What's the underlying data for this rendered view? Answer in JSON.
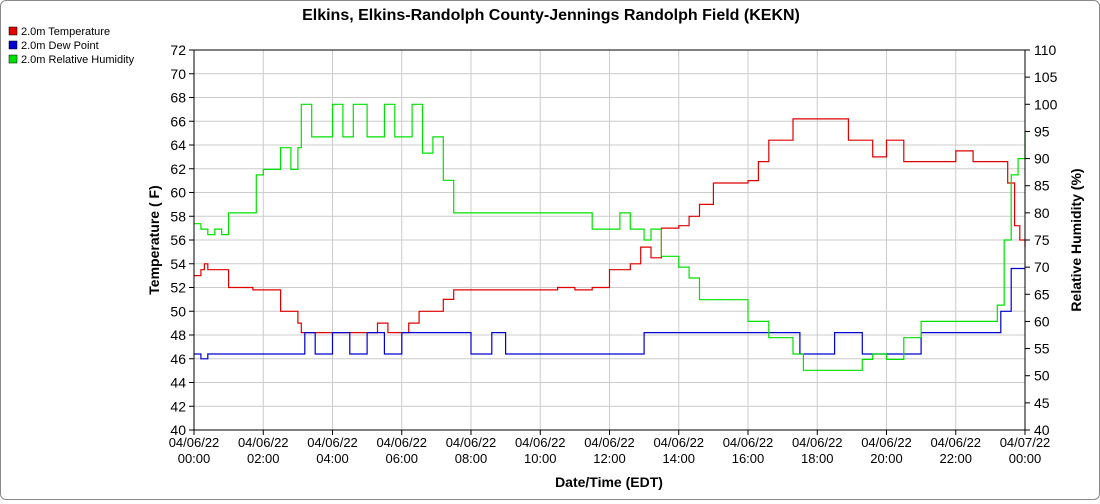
{
  "chart_data": {
    "type": "line",
    "title": "Elkins, Elkins-Randolph County-Jennings Randolph Field (KEKN)",
    "xlabel": "Date/Time (EDT)",
    "ylabel": "Temperature ( F)",
    "y2label": "Relative Humidity (%)",
    "ylim": [
      40,
      72
    ],
    "y2lim": [
      40,
      110
    ],
    "xlim_hours": [
      0,
      24
    ],
    "grid": true,
    "legend_placement": "top-left",
    "x_ticks": [
      {
        "date": "04/06/22",
        "time": "00:00"
      },
      {
        "date": "04/06/22",
        "time": "02:00"
      },
      {
        "date": "04/06/22",
        "time": "04:00"
      },
      {
        "date": "04/06/22",
        "time": "06:00"
      },
      {
        "date": "04/06/22",
        "time": "08:00"
      },
      {
        "date": "04/06/22",
        "time": "10:00"
      },
      {
        "date": "04/06/22",
        "time": "12:00"
      },
      {
        "date": "04/06/22",
        "time": "14:00"
      },
      {
        "date": "04/06/22",
        "time": "16:00"
      },
      {
        "date": "04/06/22",
        "time": "18:00"
      },
      {
        "date": "04/06/22",
        "time": "20:00"
      },
      {
        "date": "04/06/22",
        "time": "22:00"
      },
      {
        "date": "04/07/22",
        "time": "00:00"
      }
    ],
    "y_ticks": [
      "40",
      "42",
      "44",
      "46",
      "48",
      "50",
      "52",
      "54",
      "56",
      "58",
      "60",
      "62",
      "64",
      "66",
      "68",
      "70",
      "72"
    ],
    "y2_ticks": [
      "40",
      "45",
      "50",
      "55",
      "60",
      "65",
      "70",
      "75",
      "80",
      "85",
      "90",
      "95",
      "100",
      "105",
      "110"
    ],
    "series": [
      {
        "name": "2.0m Temperature",
        "color": "#e00000",
        "axis": "left",
        "x_hours": [
          0,
          0.2,
          0.3,
          0.4,
          0.6,
          0.8,
          1.0,
          1.7,
          1.8,
          2.5,
          2.8,
          3.0,
          3.1,
          3.5,
          4.0,
          4.5,
          5.0,
          5.3,
          5.6,
          5.9,
          6.2,
          6.5,
          6.8,
          7.2,
          7.5,
          8.0,
          8.5,
          9.0,
          9.5,
          10.0,
          10.5,
          11.0,
          11.2,
          11.5,
          12.0,
          12.3,
          12.6,
          12.9,
          13.0,
          13.2,
          13.5,
          13.8,
          14.0,
          14.3,
          14.6,
          15.0,
          15.4,
          15.8,
          16.0,
          16.3,
          16.6,
          17.0,
          17.3,
          17.6,
          18.0,
          18.5,
          18.9,
          19.3,
          19.6,
          20.0,
          20.5,
          21.0,
          21.5,
          22.0,
          22.5,
          23.0,
          23.3,
          23.5,
          23.7,
          23.85,
          24.0
        ],
        "values": [
          53.0,
          53.5,
          54.0,
          53.5,
          53.5,
          53.5,
          52.0,
          51.8,
          51.8,
          50.0,
          50.0,
          49.0,
          48.2,
          48.2,
          48.2,
          48.2,
          48.2,
          49.0,
          48.2,
          48.2,
          49.0,
          50.0,
          50.0,
          51.0,
          51.8,
          51.8,
          51.8,
          51.8,
          51.8,
          51.8,
          52.0,
          51.8,
          51.8,
          52.0,
          53.5,
          53.5,
          54.0,
          55.4,
          55.4,
          54.5,
          57.0,
          57.0,
          57.2,
          58.0,
          59.0,
          60.8,
          60.8,
          60.8,
          61.0,
          62.6,
          64.4,
          64.4,
          66.2,
          66.2,
          66.2,
          66.2,
          64.4,
          64.4,
          63.0,
          64.4,
          62.6,
          62.6,
          62.6,
          63.5,
          62.6,
          62.6,
          62.6,
          60.8,
          57.2,
          56.0,
          55.4
        ]
      },
      {
        "name": "2.0m Dew Point",
        "color": "#0000d0",
        "axis": "left",
        "x_hours": [
          0,
          0.2,
          0.4,
          0.6,
          1.0,
          2.0,
          2.6,
          3.0,
          3.2,
          3.5,
          4.0,
          4.5,
          5.0,
          5.5,
          6.0,
          6.5,
          7.0,
          7.5,
          8.0,
          8.3,
          8.6,
          9.0,
          9.5,
          10.0,
          10.5,
          11.0,
          11.5,
          12.0,
          12.5,
          13.0,
          14.0,
          15.0,
          16.0,
          17.0,
          17.5,
          18.0,
          18.5,
          19.0,
          19.3,
          19.6,
          20.0,
          20.5,
          21.0,
          21.5,
          22.0,
          22.5,
          23.0,
          23.3,
          23.6,
          23.8,
          24.0
        ],
        "values": [
          46.4,
          46.0,
          46.4,
          46.4,
          46.4,
          46.4,
          46.4,
          46.4,
          48.2,
          46.4,
          48.2,
          46.4,
          48.2,
          46.4,
          48.2,
          48.2,
          48.2,
          48.2,
          46.4,
          46.4,
          48.2,
          46.4,
          46.4,
          46.4,
          46.4,
          46.4,
          46.4,
          46.4,
          46.4,
          48.2,
          48.2,
          48.2,
          48.2,
          48.2,
          46.4,
          46.4,
          48.2,
          48.2,
          46.4,
          46.4,
          46.4,
          46.4,
          48.2,
          48.2,
          48.2,
          48.2,
          48.2,
          50.0,
          53.6,
          53.6,
          53.6
        ]
      },
      {
        "name": "2.0m Relative Humidity",
        "color": "#00e000",
        "axis": "right",
        "x_hours": [
          0,
          0.2,
          0.4,
          0.6,
          0.8,
          1.0,
          1.5,
          1.8,
          2.0,
          2.2,
          2.5,
          2.8,
          3.0,
          3.1,
          3.4,
          3.8,
          4.0,
          4.3,
          4.6,
          5.0,
          5.2,
          5.5,
          5.8,
          6.0,
          6.3,
          6.6,
          6.9,
          7.2,
          7.5,
          8.0,
          8.5,
          9.0,
          9.5,
          10.0,
          10.5,
          11.0,
          11.5,
          12.0,
          12.3,
          12.6,
          12.9,
          13.0,
          13.2,
          13.5,
          13.8,
          14.0,
          14.3,
          14.6,
          15.0,
          15.4,
          15.8,
          16.0,
          16.3,
          16.6,
          17.0,
          17.3,
          17.6,
          18.0,
          18.5,
          18.9,
          19.3,
          19.6,
          20.0,
          20.5,
          21.0,
          21.5,
          22.0,
          22.5,
          23.0,
          23.2,
          23.4,
          23.6,
          23.8,
          24.0
        ],
        "values": [
          78,
          77,
          76,
          77,
          76,
          80,
          80,
          87,
          88,
          88,
          92,
          88,
          92,
          100,
          94,
          94,
          100,
          94,
          100,
          94,
          94,
          100,
          94,
          94,
          100,
          91,
          94,
          86,
          80,
          80,
          80,
          80,
          80,
          80,
          80,
          80,
          77,
          77,
          80,
          77,
          77,
          75,
          77,
          72,
          72,
          70,
          68,
          64,
          64,
          64,
          64,
          60,
          60,
          57,
          57,
          54,
          51,
          51,
          51,
          51,
          53,
          54,
          53,
          57,
          60,
          60,
          60,
          60,
          60,
          63,
          75,
          87,
          90,
          95
        ]
      }
    ]
  }
}
